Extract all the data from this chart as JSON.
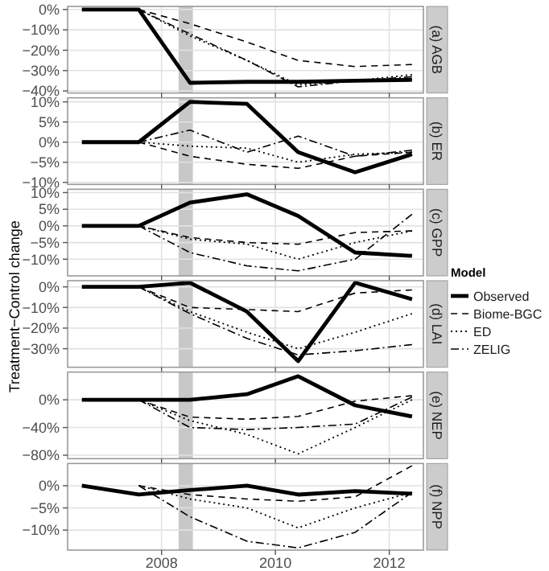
{
  "chart_data": [
    {
      "type": "line",
      "title": "(a) AGB",
      "legend": "right",
      "legend_title": "Model",
      "x": [
        2006.6,
        2007.6,
        2008.5,
        2009.5,
        2010.4,
        2011.4,
        2012.4
      ],
      "xlim": [
        2006.35,
        2012.6
      ],
      "xticks": [
        2008,
        2010,
        2012
      ],
      "ylim": [
        -41,
        1.5
      ],
      "yticks": [
        {
          "value": 0,
          "label": "0%"
        },
        {
          "value": -10,
          "label": "−10%"
        },
        {
          "value": -20,
          "label": "−20%"
        },
        {
          "value": -30,
          "label": "−30%"
        },
        {
          "value": -40,
          "label": "−40%"
        }
      ],
      "grid": true,
      "tick_labels": "y",
      "bands": [
        {
          "axis": "x",
          "from": 2008.3,
          "to": 2008.55,
          "color": "#c8c8c8"
        }
      ],
      "series": [
        {
          "name": "Observed",
          "color": "#000000",
          "line_style": "solid",
          "values": [
            0,
            0,
            -36,
            -35.5,
            -35.5,
            -35,
            -34.5
          ]
        },
        {
          "name": "Biome-BGC",
          "color": "#000000",
          "line_style": "dashed",
          "values": [
            null,
            0,
            -7,
            -16,
            -25,
            -28,
            -27
          ]
        },
        {
          "name": "ED",
          "color": "#000000",
          "line_style": "dotted",
          "values": [
            null,
            0,
            -13,
            -25,
            -37,
            -35,
            -32
          ]
        },
        {
          "name": "ZELIG",
          "color": "#000000",
          "line_style": "dashdot",
          "values": [
            null,
            0,
            -12,
            -25,
            -38,
            -35,
            -33
          ]
        }
      ]
    },
    {
      "type": "line",
      "title": "(b) ER",
      "x": [
        2006.6,
        2007.6,
        2008.5,
        2009.5,
        2010.4,
        2011.4,
        2012.4
      ],
      "xlim": [
        2006.35,
        2012.6
      ],
      "xticks": [
        2008,
        2010,
        2012
      ],
      "ylim": [
        -10.5,
        11
      ],
      "yticks": [
        {
          "value": 10,
          "label": "10%"
        },
        {
          "value": 5,
          "label": "5%"
        },
        {
          "value": 0,
          "label": "0%"
        },
        {
          "value": -5,
          "label": "−5%"
        },
        {
          "value": -10,
          "label": "−10%"
        }
      ],
      "grid": true,
      "tick_labels": "y",
      "bands": [
        {
          "axis": "x",
          "from": 2008.3,
          "to": 2008.55,
          "color": "#c8c8c8"
        }
      ],
      "series": [
        {
          "color": "#000000",
          "line_style": "solid",
          "values": [
            0,
            0,
            10,
            9.5,
            -2.5,
            -7.5,
            -3
          ]
        },
        {
          "color": "#000000",
          "line_style": "dashed",
          "values": [
            null,
            0,
            -3.5,
            -5.5,
            -6.5,
            -3.5,
            -2.5
          ]
        },
        {
          "color": "#000000",
          "line_style": "dotted",
          "values": [
            null,
            0,
            -1,
            -1.5,
            -5,
            -3,
            -2.5
          ]
        },
        {
          "color": "#000000",
          "line_style": "dashdot",
          "values": [
            null,
            0,
            3,
            -2.5,
            1.5,
            -3.5,
            -2
          ]
        }
      ]
    },
    {
      "type": "line",
      "title": "(c) GPP",
      "x": [
        2006.6,
        2007.6,
        2008.5,
        2009.5,
        2010.4,
        2011.4,
        2012.4
      ],
      "xlim": [
        2006.35,
        2012.6
      ],
      "xticks": [
        2008,
        2010,
        2012
      ],
      "ylim": [
        -15,
        11
      ],
      "yticks": [
        {
          "value": 10,
          "label": "10%"
        },
        {
          "value": 5,
          "label": "5%"
        },
        {
          "value": 0,
          "label": "0%"
        },
        {
          "value": -5,
          "label": "−5%"
        },
        {
          "value": -10,
          "label": "−10%"
        }
      ],
      "grid": true,
      "tick_labels": "y",
      "bands": [
        {
          "axis": "x",
          "from": 2008.3,
          "to": 2008.55,
          "color": "#c8c8c8"
        }
      ],
      "series": [
        {
          "color": "#000000",
          "line_style": "solid",
          "values": [
            0,
            0,
            7,
            9.5,
            3,
            -8,
            -9
          ]
        },
        {
          "color": "#000000",
          "line_style": "dashed",
          "values": [
            null,
            0,
            -3.5,
            -5,
            -5.5,
            -2,
            -1.5
          ]
        },
        {
          "color": "#000000",
          "line_style": "dotted",
          "values": [
            null,
            0,
            -4,
            -5.5,
            -10,
            -5,
            -1.5
          ]
        },
        {
          "color": "#000000",
          "line_style": "dashdot",
          "values": [
            null,
            0,
            -8,
            -12,
            -13.5,
            -10,
            3.5
          ]
        }
      ]
    },
    {
      "type": "line",
      "title": "(d) LAI",
      "ylabel": "Treatment−Control change",
      "x": [
        2006.6,
        2007.6,
        2008.5,
        2009.5,
        2010.4,
        2011.4,
        2012.4
      ],
      "xlim": [
        2006.35,
        2012.6
      ],
      "xticks": [
        2008,
        2010,
        2012
      ],
      "ylim": [
        -39,
        3
      ],
      "yticks": [
        {
          "value": 0,
          "label": "0%"
        },
        {
          "value": -10,
          "label": "−10%"
        },
        {
          "value": -20,
          "label": "−20%"
        },
        {
          "value": -30,
          "label": "−30%"
        }
      ],
      "grid": true,
      "tick_labels": "y",
      "bands": [
        {
          "axis": "x",
          "from": 2008.3,
          "to": 2008.55,
          "color": "#c8c8c8"
        }
      ],
      "series": [
        {
          "color": "#000000",
          "line_style": "solid",
          "values": [
            0,
            0,
            2,
            -12,
            -36,
            2,
            -6
          ]
        },
        {
          "color": "#000000",
          "line_style": "dashed",
          "values": [
            null,
            0,
            -10,
            -11,
            -12,
            -3,
            -1.5
          ]
        },
        {
          "color": "#000000",
          "line_style": "dotted",
          "values": [
            null,
            0,
            -12,
            -22,
            -30,
            -22,
            -13
          ]
        },
        {
          "color": "#000000",
          "line_style": "dashdot",
          "values": [
            null,
            0,
            -13,
            -25,
            -33,
            -31,
            -28
          ]
        }
      ]
    },
    {
      "type": "line",
      "title": "(e) NEP",
      "x": [
        2006.6,
        2007.6,
        2008.5,
        2009.5,
        2010.4,
        2011.4,
        2012.4
      ],
      "xlim": [
        2006.35,
        2012.6
      ],
      "xticks": [
        2008,
        2010,
        2012
      ],
      "ylim": [
        -85,
        40
      ],
      "yticks": [
        {
          "value": 0,
          "label": "0%"
        },
        {
          "value": -40,
          "label": "−40%"
        },
        {
          "value": -80,
          "label": "−80%"
        }
      ],
      "grid": true,
      "tick_labels": "y",
      "bands": [
        {
          "axis": "x",
          "from": 2008.3,
          "to": 2008.55,
          "color": "#c8c8c8"
        }
      ],
      "series": [
        {
          "color": "#000000",
          "line_style": "solid",
          "values": [
            0,
            0,
            0,
            8,
            34,
            -8,
            -24
          ]
        },
        {
          "color": "#000000",
          "line_style": "dashed",
          "values": [
            null,
            0,
            -25,
            -28,
            -24,
            -2,
            6
          ]
        },
        {
          "color": "#000000",
          "line_style": "dotted",
          "values": [
            null,
            0,
            -30,
            -50,
            -78,
            -40,
            0
          ]
        },
        {
          "color": "#000000",
          "line_style": "dashdot",
          "values": [
            null,
            0,
            -40,
            -43,
            -40,
            -35,
            4
          ]
        }
      ]
    },
    {
      "type": "line",
      "title": "(f) NPP",
      "x": [
        2006.6,
        2007.6,
        2008.5,
        2009.5,
        2010.4,
        2011.4,
        2012.4
      ],
      "xlim": [
        2006.35,
        2012.6
      ],
      "xticks": [
        2008,
        2010,
        2012
      ],
      "ylim": [
        -14.5,
        5
      ],
      "yticks": [
        {
          "value": 0,
          "label": "0%"
        },
        {
          "value": -5,
          "label": "−5%"
        },
        {
          "value": -10,
          "label": "−10%"
        }
      ],
      "grid": true,
      "bands": [
        {
          "axis": "x",
          "from": 2008.3,
          "to": 2008.55,
          "color": "#c8c8c8"
        }
      ],
      "series": [
        {
          "color": "#000000",
          "line_style": "solid",
          "values": [
            0,
            -2,
            -1,
            0,
            -2,
            -1.2,
            -1.8
          ]
        },
        {
          "color": "#000000",
          "line_style": "dashed",
          "values": [
            null,
            0,
            -2,
            -3,
            -3.5,
            -2.5,
            4.5
          ]
        },
        {
          "color": "#000000",
          "line_style": "dotted",
          "values": [
            null,
            0,
            -3,
            -5,
            -9.5,
            -5,
            -1.5
          ]
        },
        {
          "color": "#000000",
          "line_style": "dashdot",
          "values": [
            null,
            0,
            -7,
            -12.5,
            -14,
            -10.5,
            -1.5
          ]
        }
      ]
    }
  ]
}
